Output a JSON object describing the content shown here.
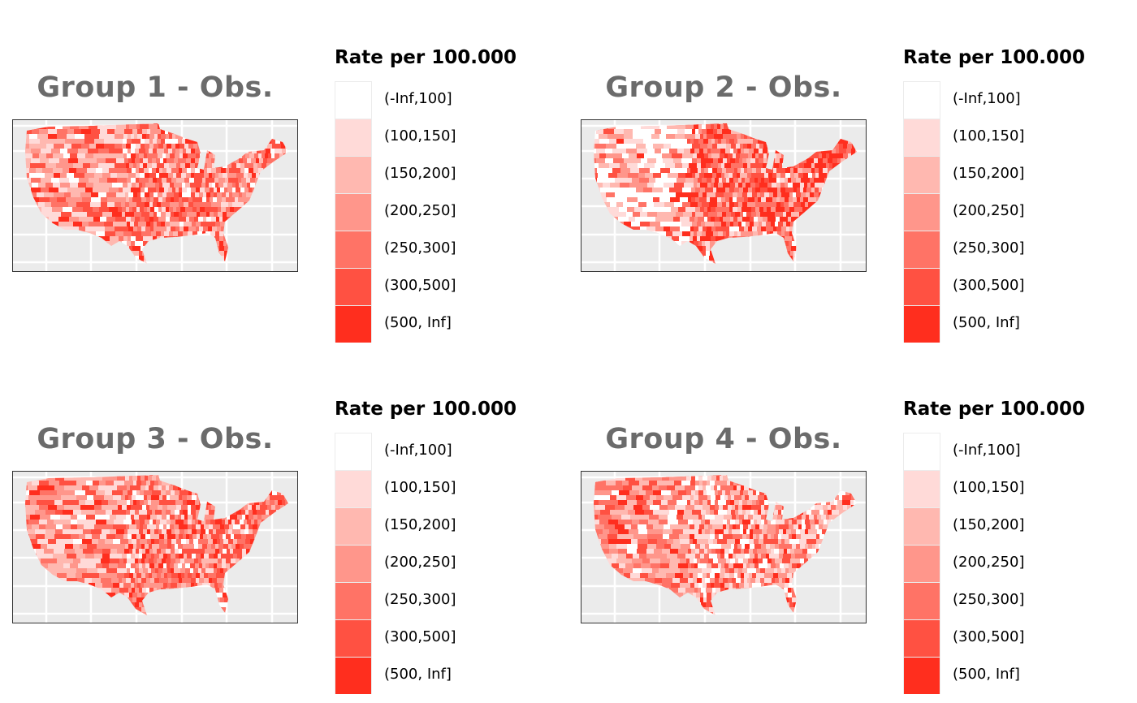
{
  "legend": {
    "title": "Rate per 100.000",
    "bins": [
      {
        "label": "(-Inf,100]",
        "color": "#FFFFFF"
      },
      {
        "label": "(100,150]",
        "color": "#FFDAD8"
      },
      {
        "label": "(150,200]",
        "color": "#FFB8B0"
      },
      {
        "label": "(200,250]",
        "color": "#FF968B"
      },
      {
        "label": "(250,300]",
        "color": "#FF7366"
      },
      {
        "label": "(300,500]",
        "color": "#FF5142"
      },
      {
        "label": "(500, Inf]",
        "color": "#FF2E1E"
      }
    ]
  },
  "panels": [
    {
      "title": "Group 1 - Obs."
    },
    {
      "title": "Group 2 - Obs."
    },
    {
      "title": "Group 3 - Obs."
    },
    {
      "title": "Group 4 - Obs."
    }
  ],
  "colors": {
    "panel_bg": "#EBEBEB",
    "grid": "#FFFFFF",
    "title": "#6B6B6B"
  }
}
